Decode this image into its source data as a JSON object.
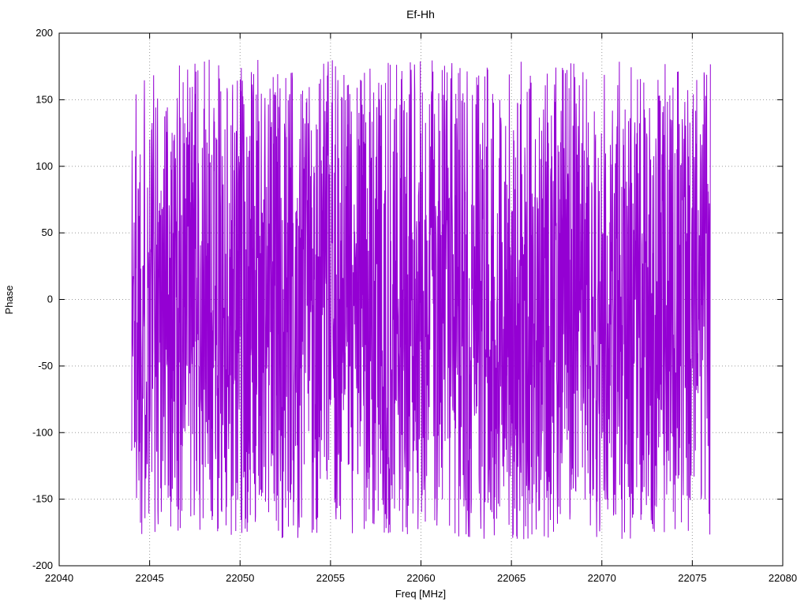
{
  "chart_data": {
    "type": "line",
    "title": "Ef-Hh",
    "xlabel": "Freq [MHz]",
    "ylabel": "Phase",
    "xlim": [
      22040,
      22080
    ],
    "ylim": [
      -200,
      200
    ],
    "x_ticks": [
      22040,
      22045,
      22050,
      22055,
      22060,
      22065,
      22070,
      22075,
      22080
    ],
    "y_ticks": [
      -200,
      -150,
      -100,
      -50,
      0,
      50,
      100,
      150,
      200
    ],
    "grid": true,
    "grid_style": "dotted",
    "grid_color": "#9a9a9a",
    "border_color": "#000000",
    "background_color": "#ffffff",
    "legend": "none",
    "series": [
      {
        "name": "Ef-Hh",
        "color": "#9400d3",
        "description": "Wrapped interferometric phase vs frequency; appears as dense uniform random noise spanning the full wrapped-phase range",
        "x_start": 22044.0,
        "x_end": 22076.0,
        "n_points": 2200,
        "y_min": -180,
        "y_max": 180,
        "distribution": "uniform-random",
        "seed": 1337
      }
    ]
  }
}
